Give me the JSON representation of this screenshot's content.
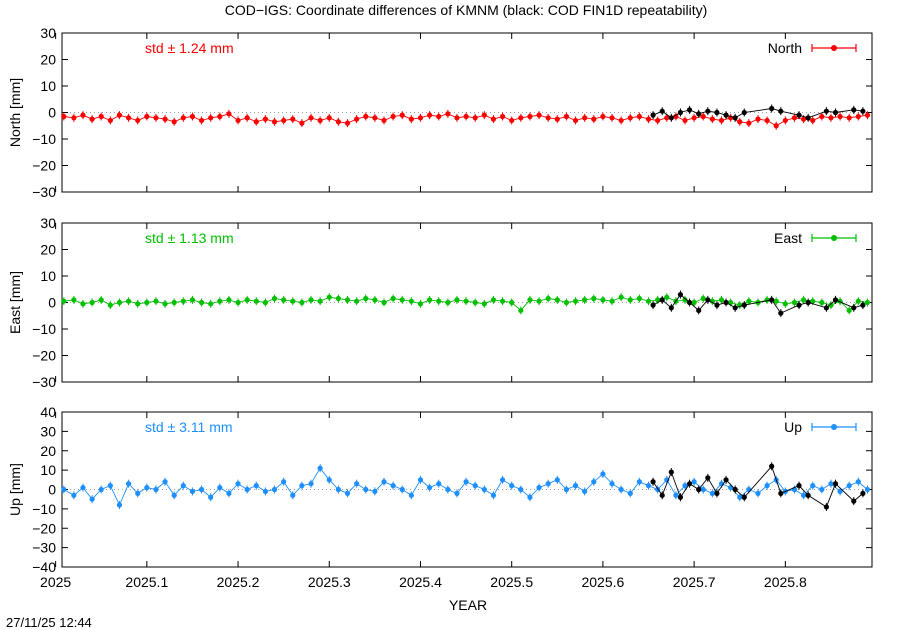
{
  "title": "COD−IGS: Coordinate differences of KMNM (black: COD FIN1D repeatability)",
  "xlabel": "YEAR",
  "timestamp": "27/11/25 12:44",
  "colors": {
    "north": "#ff0000",
    "east": "#00c000",
    "up": "#1e8fff",
    "repeat": "#000000",
    "zero": "#808080"
  },
  "chart_data": [
    {
      "type": "line",
      "panel": "north",
      "legend": "North",
      "std": "std ± 1.24 mm",
      "ylabel": "North [mm]",
      "xlim": [
        2025.007,
        2025.895
      ],
      "ylim": [
        -30,
        30
      ],
      "yticks": [
        "30",
        "20",
        "10",
        "0",
        "−10",
        "−20",
        "−30"
      ],
      "xticks": [
        "2025",
        "2025.1",
        "2025.2",
        "2025.3",
        "2025.4",
        "2025.5",
        "2025.6",
        "2025.7",
        "2025.8"
      ],
      "series": [
        {
          "color": "#ff0000",
          "x": [
            2025.009,
            2025.02,
            2025.03,
            2025.04,
            2025.05,
            2025.06,
            2025.07,
            2025.08,
            2025.09,
            2025.1,
            2025.11,
            2025.12,
            2025.13,
            2025.14,
            2025.15,
            2025.16,
            2025.17,
            2025.18,
            2025.19,
            2025.2,
            2025.21,
            2025.22,
            2025.23,
            2025.24,
            2025.25,
            2025.26,
            2025.27,
            2025.28,
            2025.29,
            2025.3,
            2025.31,
            2025.32,
            2025.33,
            2025.34,
            2025.35,
            2025.36,
            2025.37,
            2025.38,
            2025.39,
            2025.4,
            2025.41,
            2025.42,
            2025.43,
            2025.44,
            2025.45,
            2025.46,
            2025.47,
            2025.48,
            2025.49,
            2025.5,
            2025.51,
            2025.52,
            2025.53,
            2025.54,
            2025.55,
            2025.56,
            2025.57,
            2025.58,
            2025.59,
            2025.6,
            2025.61,
            2025.62,
            2025.63,
            2025.64,
            2025.65,
            2025.66,
            2025.67,
            2025.68,
            2025.69,
            2025.7,
            2025.71,
            2025.72,
            2025.73,
            2025.74,
            2025.75,
            2025.76,
            2025.77,
            2025.78,
            2025.79,
            2025.8,
            2025.81,
            2025.82,
            2025.83,
            2025.84,
            2025.85,
            2025.86,
            2025.87,
            2025.88,
            2025.89
          ],
          "y": [
            -1.5,
            -2,
            -1,
            -2.5,
            -1.5,
            -3,
            -1,
            -2,
            -3,
            -1.5,
            -2,
            -2.5,
            -3.5,
            -2,
            -1.5,
            -3,
            -2,
            -1.5,
            -0.5,
            -3,
            -2,
            -3.5,
            -2.5,
            -3.5,
            -3,
            -2.5,
            -4,
            -2,
            -3,
            -2,
            -3.5,
            -4,
            -2.5,
            -1.5,
            -2,
            -3,
            -1.5,
            -1,
            -2.5,
            -2,
            -1,
            -1.5,
            -0.5,
            -2,
            -1.5,
            -2,
            -1,
            -2.5,
            -1.5,
            -3,
            -2,
            -1.5,
            -1,
            -2,
            -2.5,
            -1.5,
            -3,
            -2,
            -2.5,
            -1.5,
            -2,
            -3,
            -2,
            -1.5,
            -2.5,
            -3,
            -2,
            -1.5,
            -3,
            -2,
            -1.5,
            -2.5,
            -3,
            -2,
            -3.5,
            -4,
            -2.5,
            -3,
            -5,
            -3,
            -2,
            -2.5,
            -3,
            -1.5,
            -2,
            -1.5,
            -2,
            -1.5,
            -1
          ]
        },
        {
          "color": "#000000",
          "x": [
            2025.655,
            2025.665,
            2025.675,
            2025.685,
            2025.695,
            2025.705,
            2025.715,
            2025.725,
            2025.735,
            2025.745,
            2025.755,
            2025.785,
            2025.795,
            2025.815,
            2025.825,
            2025.845,
            2025.855,
            2025.875,
            2025.885
          ],
          "y": [
            -1,
            0.5,
            -2,
            0,
            1,
            -0.5,
            0.5,
            0,
            -1,
            -2,
            0,
            1.5,
            0.5,
            -1,
            -2,
            0.5,
            0,
            1,
            0.5
          ]
        }
      ]
    },
    {
      "type": "line",
      "panel": "east",
      "legend": "East",
      "std": "std ± 1.13 mm",
      "ylabel": "East [mm]",
      "xlim": [
        2025.007,
        2025.895
      ],
      "ylim": [
        -30,
        30
      ],
      "yticks": [
        "30",
        "20",
        "10",
        "0",
        "−10",
        "−20",
        "−30"
      ],
      "xticks": [
        "2025",
        "2025.1",
        "2025.2",
        "2025.3",
        "2025.4",
        "2025.5",
        "2025.6",
        "2025.7",
        "2025.8"
      ],
      "series": [
        {
          "color": "#00c000",
          "x": [
            2025.009,
            2025.02,
            2025.03,
            2025.04,
            2025.05,
            2025.06,
            2025.07,
            2025.08,
            2025.09,
            2025.1,
            2025.11,
            2025.12,
            2025.13,
            2025.14,
            2025.15,
            2025.16,
            2025.17,
            2025.18,
            2025.19,
            2025.2,
            2025.21,
            2025.22,
            2025.23,
            2025.24,
            2025.25,
            2025.26,
            2025.27,
            2025.28,
            2025.29,
            2025.3,
            2025.31,
            2025.32,
            2025.33,
            2025.34,
            2025.35,
            2025.36,
            2025.37,
            2025.38,
            2025.39,
            2025.4,
            2025.41,
            2025.42,
            2025.43,
            2025.44,
            2025.45,
            2025.46,
            2025.47,
            2025.48,
            2025.49,
            2025.5,
            2025.51,
            2025.52,
            2025.53,
            2025.54,
            2025.55,
            2025.56,
            2025.57,
            2025.58,
            2025.59,
            2025.6,
            2025.61,
            2025.62,
            2025.63,
            2025.64,
            2025.65,
            2025.66,
            2025.67,
            2025.68,
            2025.69,
            2025.7,
            2025.71,
            2025.72,
            2025.73,
            2025.74,
            2025.75,
            2025.76,
            2025.77,
            2025.78,
            2025.79,
            2025.8,
            2025.81,
            2025.82,
            2025.83,
            2025.84,
            2025.85,
            2025.86,
            2025.87,
            2025.88,
            2025.89
          ],
          "y": [
            0.5,
            1,
            -0.5,
            0,
            1,
            -1,
            0,
            0.5,
            -0.5,
            0,
            0.5,
            -0.5,
            0,
            0.5,
            1,
            0,
            -0.5,
            0.5,
            1,
            0,
            1,
            0.5,
            0,
            1.5,
            1,
            0.5,
            0,
            1,
            0.5,
            2,
            1.5,
            1,
            0.5,
            1.5,
            1,
            0,
            1.5,
            1,
            0.5,
            -0.5,
            1,
            0.5,
            0,
            1,
            0.5,
            0,
            -0.5,
            1,
            0.5,
            0,
            -3,
            1,
            0.5,
            1.5,
            1,
            0,
            0.5,
            1,
            1.5,
            1,
            0.5,
            2,
            1,
            1.5,
            0.5,
            1,
            2,
            0.5,
            1,
            0,
            1.5,
            0.5,
            1,
            0,
            -1,
            0.5,
            0,
            1,
            0.5,
            -0.5,
            0,
            1,
            0.5,
            0,
            -1,
            0.5,
            -3,
            0.5,
            0
          ]
        },
        {
          "color": "#000000",
          "x": [
            2025.655,
            2025.665,
            2025.675,
            2025.685,
            2025.695,
            2025.705,
            2025.715,
            2025.725,
            2025.735,
            2025.745,
            2025.755,
            2025.785,
            2025.795,
            2025.815,
            2025.825,
            2025.845,
            2025.855,
            2025.875,
            2025.885
          ],
          "y": [
            -1,
            1,
            -2,
            3,
            0,
            -3,
            1,
            -1,
            0,
            -2,
            -1,
            1,
            -4,
            -1,
            0,
            -2,
            1,
            -2,
            -1
          ]
        }
      ]
    },
    {
      "type": "line",
      "panel": "up",
      "legend": "Up",
      "std": "std ± 3.11 mm",
      "ylabel": "Up [mm]",
      "xlabel": "YEAR",
      "xlim": [
        2025.007,
        2025.895
      ],
      "ylim": [
        -40,
        40
      ],
      "yticks": [
        "40",
        "30",
        "20",
        "10",
        "0",
        "−10",
        "−20",
        "−30",
        "−40"
      ],
      "xticks": [
        "2025",
        "2025.1",
        "2025.2",
        "2025.3",
        "2025.4",
        "2025.5",
        "2025.6",
        "2025.7",
        "2025.8"
      ],
      "series": [
        {
          "color": "#1e8fff",
          "x": [
            2025.009,
            2025.02,
            2025.03,
            2025.04,
            2025.05,
            2025.06,
            2025.07,
            2025.08,
            2025.09,
            2025.1,
            2025.11,
            2025.12,
            2025.13,
            2025.14,
            2025.15,
            2025.16,
            2025.17,
            2025.18,
            2025.19,
            2025.2,
            2025.21,
            2025.22,
            2025.23,
            2025.24,
            2025.25,
            2025.26,
            2025.27,
            2025.28,
            2025.29,
            2025.3,
            2025.31,
            2025.32,
            2025.33,
            2025.34,
            2025.35,
            2025.36,
            2025.37,
            2025.38,
            2025.39,
            2025.4,
            2025.41,
            2025.42,
            2025.43,
            2025.44,
            2025.45,
            2025.46,
            2025.47,
            2025.48,
            2025.49,
            2025.5,
            2025.51,
            2025.52,
            2025.53,
            2025.54,
            2025.55,
            2025.56,
            2025.57,
            2025.58,
            2025.59,
            2025.6,
            2025.61,
            2025.62,
            2025.63,
            2025.64,
            2025.65,
            2025.66,
            2025.67,
            2025.68,
            2025.69,
            2025.7,
            2025.71,
            2025.72,
            2025.73,
            2025.74,
            2025.75,
            2025.76,
            2025.77,
            2025.78,
            2025.79,
            2025.8,
            2025.81,
            2025.82,
            2025.83,
            2025.84,
            2025.85,
            2025.86,
            2025.87,
            2025.88,
            2025.89
          ],
          "y": [
            0,
            -3,
            1,
            -5,
            0,
            2,
            -8,
            3,
            -2,
            1,
            0,
            4,
            -3,
            2,
            -1,
            0,
            -4,
            1,
            -2,
            3,
            0,
            2,
            -1,
            0,
            4,
            -3,
            2,
            3,
            11,
            5,
            0,
            -2,
            3,
            0,
            -1,
            4,
            2,
            0,
            -3,
            5,
            1,
            3,
            0,
            -2,
            4,
            2,
            0,
            -3,
            5,
            2,
            0,
            -4,
            1,
            3,
            5,
            0,
            2,
            -1,
            4,
            8,
            3,
            0,
            -2,
            4,
            2,
            0,
            5,
            -3,
            2,
            4,
            0,
            -2,
            3,
            1,
            -4,
            0,
            -2,
            2,
            5,
            -1,
            0,
            -3,
            2,
            0,
            3,
            -1,
            2,
            4,
            0
          ]
        },
        {
          "color": "#000000",
          "x": [
            2025.655,
            2025.665,
            2025.675,
            2025.685,
            2025.695,
            2025.705,
            2025.715,
            2025.725,
            2025.735,
            2025.745,
            2025.755,
            2025.785,
            2025.795,
            2025.815,
            2025.825,
            2025.845,
            2025.855,
            2025.875,
            2025.885
          ],
          "y": [
            4,
            -3,
            9,
            -4,
            3,
            0,
            6,
            -2,
            5,
            0,
            -4,
            12,
            -2,
            2,
            -3,
            -9,
            3,
            -6,
            -2
          ]
        }
      ]
    }
  ]
}
